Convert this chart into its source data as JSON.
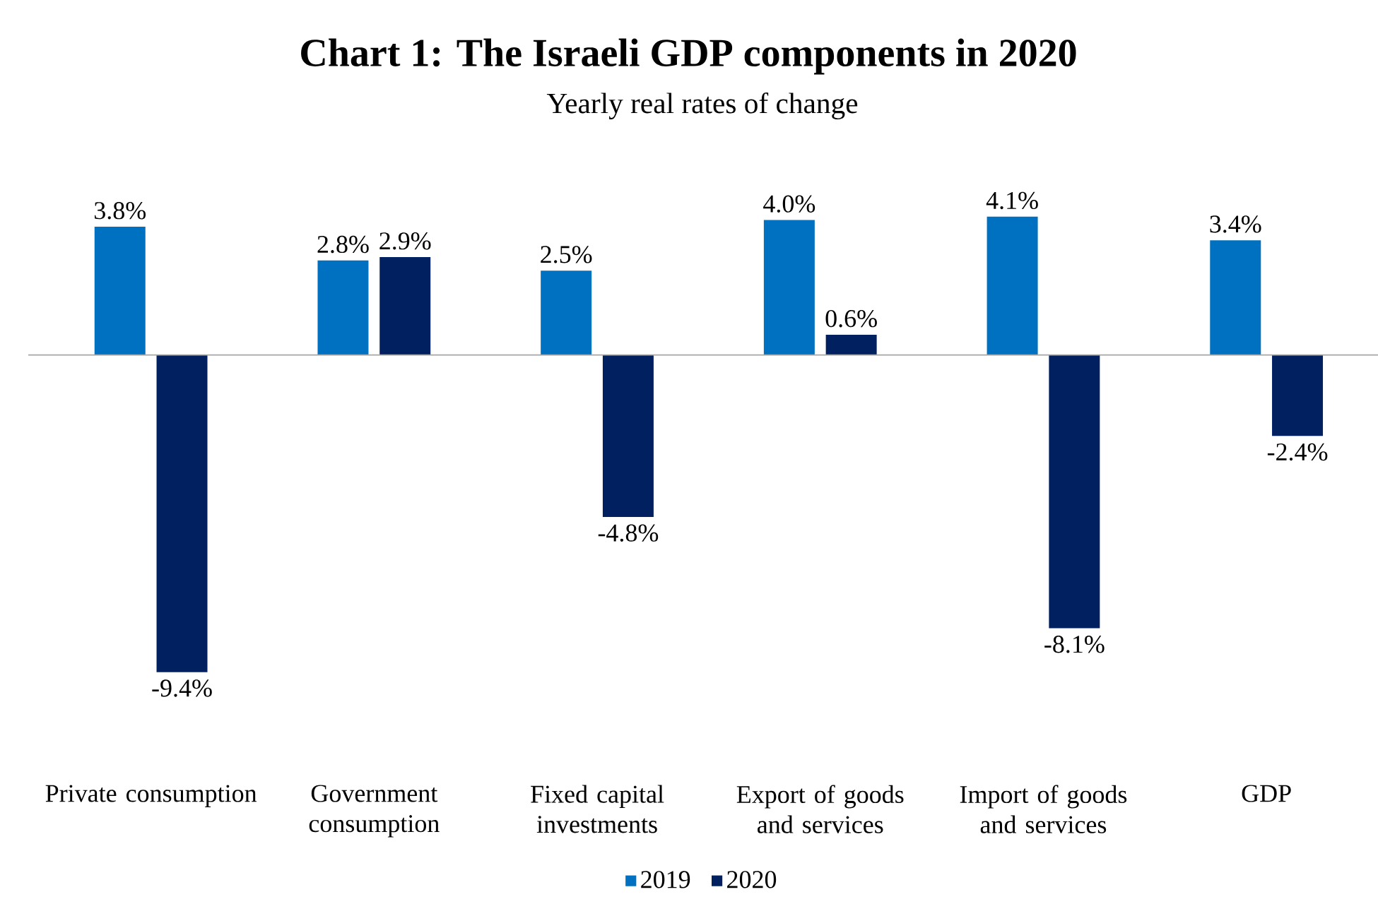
{
  "chart_data": {
    "type": "bar",
    "title": "Chart 1: The Israeli GDP components in 2020",
    "subtitle": "Yearly real  rates of change",
    "categories": [
      "Private consumption",
      "Government consumption",
      "Fixed capital investments",
      "Export of goods and services",
      "Import of goods and services",
      "GDP"
    ],
    "series": [
      {
        "name": "2019",
        "color": "#0070c0",
        "values": [
          3.8,
          2.8,
          2.5,
          4.0,
          4.1,
          3.4
        ],
        "value_labels": [
          "3.8%",
          "2.8%",
          "2.5%",
          "4.0%",
          "4.1%",
          "3.4%"
        ]
      },
      {
        "name": "2020",
        "color": "#002060",
        "values": [
          -9.4,
          2.9,
          -4.8,
          0.6,
          -8.1,
          -2.4
        ],
        "value_labels": [
          "-9.4%",
          "2.9%",
          "-4.8%",
          "0.6%",
          "-8.1%",
          "-2.4%"
        ]
      }
    ],
    "legend": "bottom"
  }
}
